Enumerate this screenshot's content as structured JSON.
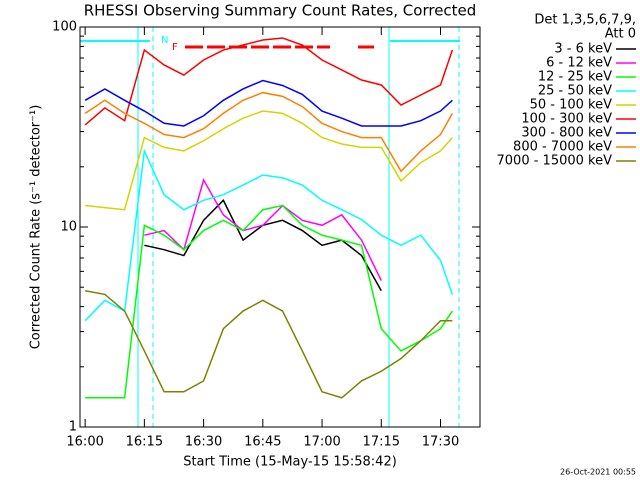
{
  "chart_data": {
    "type": "line",
    "title": "RHESSI Observing Summary Count Rates, Corrected",
    "x_label": "Start Time (15-May-15 15:58:42)",
    "y_label": "Corrected Count Rate (s⁻¹ detector⁻¹)",
    "legend_title": [
      "Det 1,3,5,6,7,9,",
      "Att 0"
    ],
    "footer": "26-Oct-2021 00:55",
    "annotations": [
      "N",
      "F"
    ],
    "log_y": true,
    "legend": "outside-right",
    "xlim": [
      "15:58:42",
      "17:40"
    ],
    "xticks": [
      "16:00",
      "16:15",
      "16:30",
      "16:45",
      "17:00",
      "17:15",
      "17:30"
    ],
    "ylim": [
      1,
      100
    ],
    "yticks": [
      1,
      10,
      100
    ],
    "minor_yticks": [
      2,
      3,
      4,
      5,
      6,
      7,
      8,
      9,
      20,
      30,
      40,
      50,
      60,
      70,
      80,
      90
    ],
    "x": [
      "16:00",
      "16:05",
      "16:10",
      "16:15",
      "16:20",
      "16:25",
      "16:30",
      "16:35",
      "16:40",
      "16:45",
      "16:50",
      "16:55",
      "17:00",
      "17:05",
      "17:10",
      "17:15",
      "17:20",
      "17:25",
      "17:30",
      "17:33"
    ],
    "series": [
      {
        "name": "3 - 6 keV",
        "color": "#000000",
        "values": [
          null,
          null,
          null,
          8.1,
          7.7,
          7.2,
          10.8,
          13.6,
          8.6,
          10.2,
          10.8,
          9.6,
          8.1,
          8.6,
          7.2,
          4.8,
          null,
          null,
          null,
          null
        ]
      },
      {
        "name": "6 - 12 keV",
        "color": "#ff00ff",
        "values": [
          null,
          null,
          null,
          9.1,
          9.6,
          7.7,
          17.2,
          11.5,
          9.6,
          10.2,
          12.8,
          10.8,
          10.2,
          11.5,
          8.6,
          5.4,
          null,
          null,
          null,
          null
        ]
      },
      {
        "name": "12 - 25 keV",
        "color": "#00ff00",
        "values": [
          1.4,
          1.4,
          1.4,
          10.2,
          9.1,
          7.7,
          9.6,
          10.8,
          9.6,
          12.2,
          12.8,
          10.2,
          9.1,
          8.6,
          8.1,
          3.1,
          2.4,
          2.7,
          3.1,
          3.8
        ]
      },
      {
        "name": "25 - 50 keV",
        "color": "#00ffff",
        "values": [
          3.4,
          4.3,
          3.8,
          24,
          14.5,
          12.2,
          13.6,
          14.5,
          16.2,
          18.2,
          17.6,
          16.2,
          13.6,
          12.2,
          10.9,
          9.1,
          8.1,
          9.1,
          6.8,
          4.6
        ]
      },
      {
        "name": "50 - 100 keV",
        "color": "#d4d400",
        "values": [
          12.8,
          12.5,
          12.2,
          28,
          25,
          24,
          27,
          31,
          35,
          38,
          37,
          33,
          28,
          26,
          25,
          25,
          17,
          21,
          24,
          28
        ]
      },
      {
        "name": "100 - 300 keV",
        "color": "#ff0000",
        "values": [
          32.4,
          39.4,
          34,
          76.7,
          64.6,
          57.5,
          68.4,
          76.7,
          81.3,
          86.1,
          88.1,
          81.3,
          68.4,
          61,
          54.3,
          51.3,
          40.7,
          45.7,
          51.3,
          76.7
        ]
      },
      {
        "name": "300 - 800 keV",
        "color": "#0000ff",
        "values": [
          43,
          49,
          43,
          38,
          33,
          32,
          36,
          43,
          49,
          54,
          51,
          46,
          38,
          35,
          32,
          32,
          32,
          34,
          38,
          43
        ]
      },
      {
        "name": "800 - 7000 keV",
        "color": "#ff8000",
        "values": [
          37,
          43,
          37,
          33,
          29,
          28,
          31,
          37,
          43,
          47,
          45,
          40,
          33,
          30,
          28,
          28,
          19,
          24,
          29,
          37
        ]
      },
      {
        "name": "7000 - 15000 keV",
        "color": "#808000",
        "values": [
          4.8,
          4.6,
          3.8,
          2.4,
          1.5,
          1.5,
          1.7,
          3.1,
          3.8,
          4.3,
          3.8,
          2.4,
          1.5,
          1.4,
          1.7,
          1.9,
          2.2,
          2.7,
          3.4,
          3.4
        ]
      }
    ]
  }
}
